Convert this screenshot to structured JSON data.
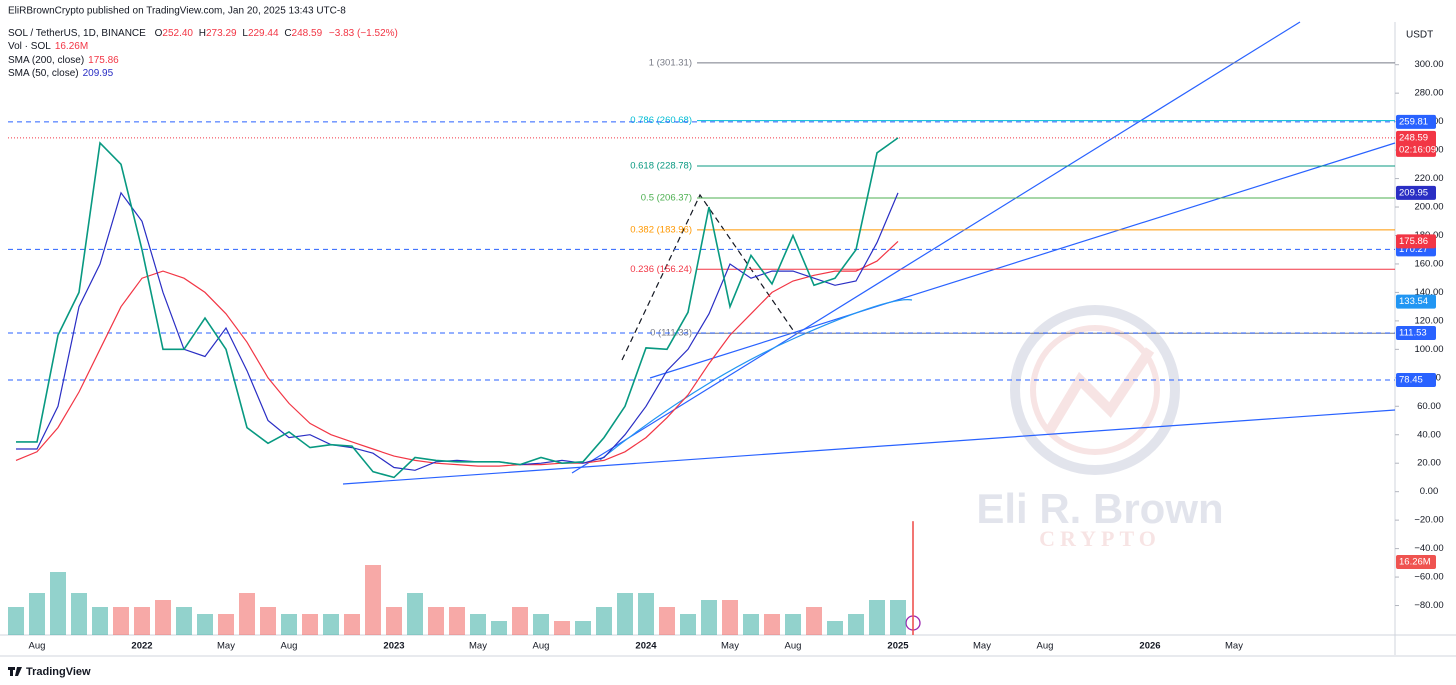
{
  "header": {
    "publisher": "EliRBrownCrypto published on TradingView.com, Jan 20, 2025 13:43 UTC-8",
    "currency": "USDT",
    "brand": "TradingView",
    "watermark": [
      "Eli R. Brown",
      "CRYPTO"
    ]
  },
  "chart_data": {
    "type": "line",
    "ohlc": [
      [
        "O",
        "252.40"
      ],
      [
        "H",
        "273.29"
      ],
      [
        "L",
        "229.44"
      ],
      [
        "C",
        "248.59"
      ]
    ],
    "change": "−3.83 (−1.52%)",
    "categories": [
      null,
      "Aug",
      null,
      null,
      null,
      null,
      "2022",
      null,
      null,
      null,
      "May",
      null,
      null,
      "Aug",
      null,
      null,
      null,
      null,
      "2023",
      null,
      null,
      null,
      "May",
      null,
      null,
      "Aug",
      null,
      null,
      null,
      null,
      "2024",
      null,
      null,
      null,
      "May",
      null,
      null,
      "Aug",
      null,
      null,
      null,
      null,
      "2025",
      null,
      null,
      null,
      "May",
      null,
      null,
      "Aug",
      null,
      null,
      null,
      null,
      "2026",
      null,
      null,
      null,
      "May",
      null,
      null,
      null,
      null,
      null,
      null,
      null
    ],
    "series": [
      {
        "name": "SOL / TetherUS, 1D, BINANCE",
        "color": "#089981",
        "values": [
          35,
          35,
          110,
          140,
          245,
          230,
          170,
          100,
          100,
          122,
          100,
          45,
          34,
          42,
          31,
          33,
          32,
          14,
          10,
          24,
          22,
          21,
          21,
          21,
          19,
          24,
          20,
          21,
          38,
          60,
          101,
          100,
          126,
          200,
          130,
          166,
          146,
          180,
          145,
          150,
          170,
          238,
          248.59,
          null,
          null,
          null,
          null,
          null,
          null,
          null,
          null,
          null,
          null,
          null,
          null,
          null,
          null,
          null,
          null,
          null,
          null,
          null,
          null,
          null,
          null,
          null
        ]
      },
      {
        "name": "SMA (200, close)",
        "color": "#f23645",
        "values": [
          22,
          28,
          45,
          70,
          100,
          130,
          150,
          155,
          150,
          140,
          125,
          105,
          80,
          62,
          48,
          40,
          35,
          30,
          25,
          22,
          20,
          19,
          18,
          18,
          19,
          19,
          20,
          20,
          22,
          28,
          38,
          52,
          68,
          90,
          110,
          125,
          140,
          148,
          152,
          155,
          155,
          162,
          175.86,
          null,
          null,
          null,
          null,
          null,
          null,
          null,
          null,
          null,
          null,
          null,
          null,
          null,
          null,
          null,
          null,
          null,
          null,
          null,
          null,
          null,
          null,
          null
        ]
      },
      {
        "name": "SMA (50, close)",
        "color": "#2a2ec4",
        "values": [
          30,
          30,
          60,
          130,
          160,
          210,
          190,
          140,
          100,
          95,
          115,
          85,
          50,
          38,
          40,
          33,
          31,
          27,
          17,
          15,
          21,
          22,
          21,
          21,
          19,
          20,
          22,
          20,
          24,
          40,
          60,
          85,
          100,
          125,
          160,
          150,
          155,
          155,
          150,
          145,
          148,
          175,
          209.95,
          null,
          null,
          null,
          null,
          null,
          null,
          null,
          null,
          null,
          null,
          null,
          null,
          null,
          null,
          null,
          null,
          null,
          null,
          null,
          null,
          null,
          null,
          null
        ]
      }
    ],
    "volume": {
      "name": "Vol · SOL",
      "up_color": "#26a69a",
      "down_color": "#ef5350",
      "values": [
        4,
        6,
        9,
        6,
        4,
        4,
        4,
        5,
        4,
        3,
        3,
        6,
        4,
        3,
        3,
        3,
        3,
        10,
        4,
        6,
        4,
        4,
        3,
        2,
        4,
        3,
        2,
        2,
        4,
        6,
        6,
        4,
        3,
        5,
        5,
        3,
        3,
        3,
        4,
        2,
        3,
        5,
        5,
        null,
        null,
        null,
        null,
        null,
        null,
        null,
        null,
        null,
        null,
        null,
        null,
        null,
        null,
        null,
        null,
        null,
        null,
        null,
        null,
        null,
        null,
        null
      ],
      "current": 16.26,
      "current_label": "16.26M"
    },
    "ylim": [
      -100,
      330
    ],
    "yticks": [
      {
        "value": -80,
        "label": "−80.00"
      },
      {
        "value": -60,
        "label": "−60.00"
      },
      {
        "value": -40,
        "label": "−40.00"
      },
      {
        "value": -20,
        "label": "−20.00"
      },
      {
        "value": 0,
        "label": "0.00"
      },
      {
        "value": 20,
        "label": "20.00"
      },
      {
        "value": 40,
        "label": "40.00"
      },
      {
        "value": 60,
        "label": "60.00"
      },
      {
        "value": 80,
        "label": "80.00"
      },
      {
        "value": 100,
        "label": "100.00"
      },
      {
        "value": 120,
        "label": "120.00"
      },
      {
        "value": 140,
        "label": "140.00"
      },
      {
        "value": 160,
        "label": "160.00"
      },
      {
        "value": 180,
        "label": "180.00"
      },
      {
        "value": 200,
        "label": "200.00"
      },
      {
        "value": 220,
        "label": "220.00"
      },
      {
        "value": 240,
        "label": "240.00"
      },
      {
        "value": 260,
        "label": "260.00"
      },
      {
        "value": 280,
        "label": "280.00"
      },
      {
        "value": 300,
        "label": "300.00"
      }
    ],
    "grid": false,
    "fib_levels": [
      {
        "label": "1 (301.31)",
        "value": 301.31,
        "color": "#787b86"
      },
      {
        "label": "0.786 (260.68)",
        "value": 260.68,
        "color": "#00bcd4"
      },
      {
        "label": "0.618 (228.78)",
        "value": 228.78,
        "color": "#089981"
      },
      {
        "label": "0.5 (206.37)",
        "value": 206.37,
        "color": "#4caf50"
      },
      {
        "label": "0.382 (183.96)",
        "value": 183.96,
        "color": "#ff9800"
      },
      {
        "label": "0.236 (156.24)",
        "value": 156.24,
        "color": "#f23645"
      },
      {
        "label": "0 (111.33)",
        "value": 111.33,
        "color": "#787b86"
      }
    ],
    "price_labels": [
      {
        "value": 259.81,
        "color": "#2962ff",
        "line": "dashed"
      },
      {
        "value": 170.27,
        "color": "#2962ff",
        "line": "dashed"
      },
      {
        "value": 133.54,
        "color": "#2196f3",
        "line": "none"
      },
      {
        "value": 111.53,
        "color": "#2962ff",
        "line": "dashed"
      },
      {
        "value": 78.45,
        "color": "#2962ff",
        "line": "dashed"
      }
    ],
    "countdown": "02:16:09"
  }
}
